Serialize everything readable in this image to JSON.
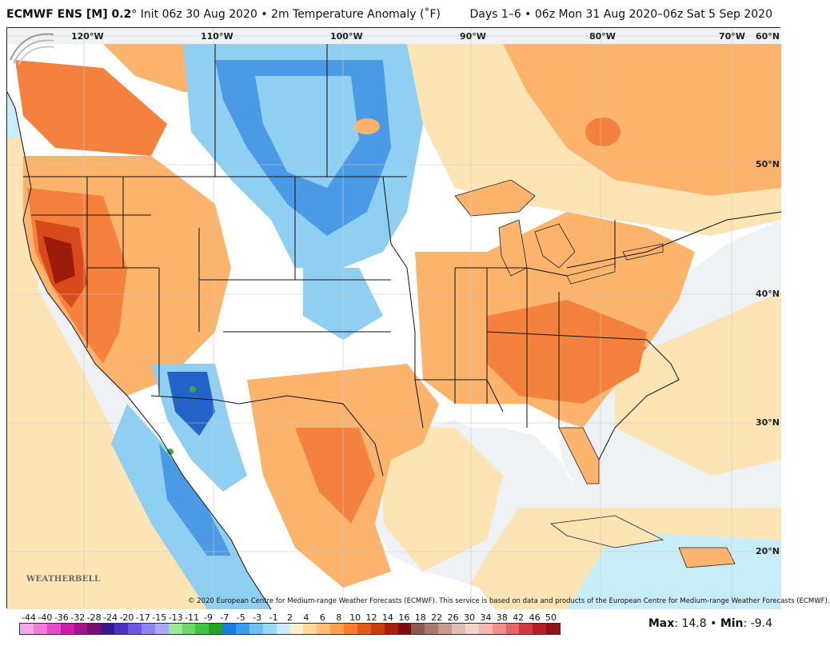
{
  "header": {
    "model": "ECMWF ENS [M] 0.2",
    "init": "° Init 06z 30 Aug 2020 • 2m Temperature Anomaly (˚F)",
    "period": "Days 1–6 • 06z Mon 31 Aug 2020–06z Sat 5 Sep 2020"
  },
  "map": {
    "lon_labels": [
      "120°W",
      "110°W",
      "100°W",
      "90°W",
      "80°W",
      "70°W"
    ],
    "lat_labels": [
      "60°N",
      "50°N",
      "40°N",
      "30°N",
      "20°N"
    ],
    "copyright": "© 2020 European Centre for Medium-range Weather Forecasts (ECMWF). This service is based on data and products of the European Centre for Medium-range Weather Forecasts (ECMWF).",
    "logo": "WEATHERBELL",
    "colors": {
      "ocean": "#f4f6f8",
      "land": "#ffffff",
      "warm1": "#fde4b4",
      "warm2": "#fcb46c",
      "warm3": "#f4813e",
      "warm4": "#d84a1c",
      "hot": "#9e1a0a",
      "cool1": "#c8ecf8",
      "cool2": "#8fd0f2",
      "cool3": "#4a9ae6",
      "cool4": "#2464c8",
      "green": "#3caa46"
    }
  },
  "legend": {
    "ticks": [
      "-44",
      "-40",
      "-36",
      "-32",
      "-28",
      "-24",
      "-20",
      "-17",
      "-15",
      "-13",
      "-11",
      "-9",
      "-7",
      "-5",
      "-3",
      "-1",
      "2",
      "4",
      "6",
      "8",
      "10",
      "12",
      "14",
      "16",
      "18",
      "22",
      "26",
      "30",
      "34",
      "38",
      "42",
      "46",
      "50"
    ],
    "colors": [
      "#f4a8e6",
      "#ec7ed8",
      "#e04ec8",
      "#c81ea8",
      "#a01488",
      "#72126a",
      "#3a1a8a",
      "#4a32c2",
      "#6a5ae2",
      "#8c86ee",
      "#aaaaf4",
      "#9ae89a",
      "#6cd86c",
      "#46c046",
      "#2aa02a",
      "#1c7ed8",
      "#3c9ee8",
      "#6cc0f2",
      "#9ad8f8",
      "#c8ecfa",
      "#fff0c8",
      "#ffd8a0",
      "#ffbe78",
      "#fda052",
      "#f47e32",
      "#e45a1e",
      "#c83c12",
      "#a4200a",
      "#7a1008",
      "#8a5a50",
      "#a87868",
      "#c89a8a",
      "#e0beb4",
      "#f0d4cc",
      "#f4b8b0",
      "#ec908a",
      "#e06864",
      "#cc3c3c",
      "#b02222",
      "#901414"
    ],
    "max_label": "Max",
    "max_value": ": 14.8",
    "sep": " • ",
    "min_label": "Min",
    "min_value": ": -9.4"
  }
}
